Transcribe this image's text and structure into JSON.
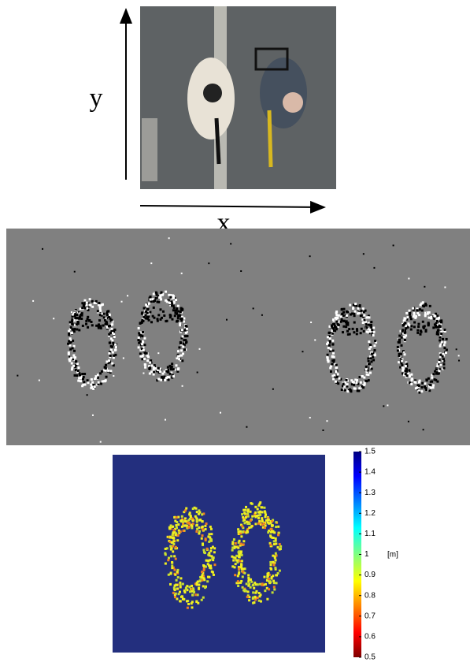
{
  "figure": {
    "axis_labels": {
      "y": "y",
      "x": "x"
    },
    "colorbar": {
      "lim": [
        0.5,
        1.5
      ],
      "ticks": [
        0.5,
        0.6,
        0.7,
        0.8,
        0.9,
        1,
        1.1,
        1.2,
        1.3,
        1.4,
        1.5
      ],
      "unit": "[m]"
    }
  }
}
